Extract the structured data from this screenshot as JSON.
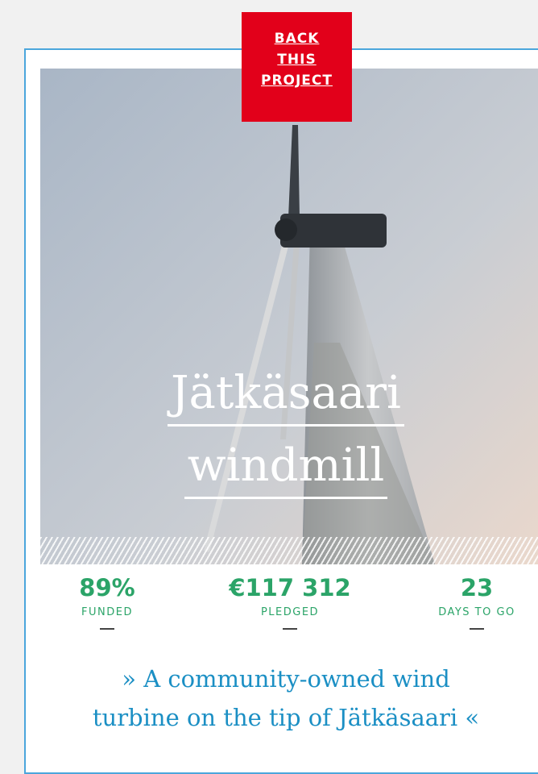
{
  "button": {
    "lines": [
      "BACK",
      "THIS",
      "PROJECT"
    ]
  },
  "title": {
    "lines": [
      "Jätkäsaari",
      "windmill"
    ]
  },
  "stats": [
    {
      "value": "89%",
      "label": "FUNDED"
    },
    {
      "value": "€117 312",
      "label": "PLEDGED"
    },
    {
      "value": "23",
      "label": "DAYS TO GO"
    }
  ],
  "quote": {
    "lines": [
      "» A community-owned wind",
      "turbine on the tip of Jätkäsaari «"
    ]
  }
}
